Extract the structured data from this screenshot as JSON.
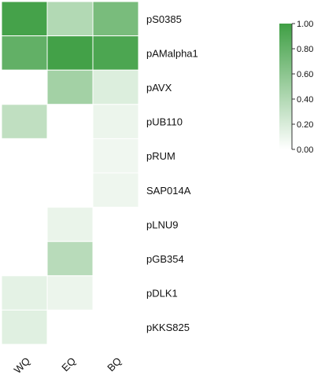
{
  "chart_data": {
    "type": "heatmap",
    "title": "",
    "xlabel": "",
    "ylabel": "",
    "columns": [
      "WQ",
      "EQ",
      "BQ"
    ],
    "rows": [
      "pS0385",
      "pAMalpha1",
      "pAVX",
      "pUB110",
      "pRUM",
      "SAP014A",
      "pLNU9",
      "pGB354",
      "pDLK1",
      "pKKS825"
    ],
    "values": [
      [
        0.97,
        0.4,
        0.7
      ],
      [
        0.82,
        0.98,
        0.93
      ],
      [
        0.0,
        0.48,
        0.18
      ],
      [
        0.33,
        0.0,
        0.1
      ],
      [
        0.0,
        0.0,
        0.08
      ],
      [
        0.0,
        0.0,
        0.09
      ],
      [
        0.0,
        0.11,
        0.0
      ],
      [
        0.0,
        0.37,
        0.0
      ],
      [
        0.14,
        0.1,
        0.0
      ],
      [
        0.16,
        0.0,
        0.0
      ]
    ],
    "colorbar": {
      "range": [
        0,
        1
      ],
      "ticks": [
        0.0,
        0.2,
        0.4,
        0.6,
        0.8,
        1.0
      ],
      "tick_labels": [
        "0.00",
        "0.20",
        "0.40",
        "0.60",
        "0.80",
        "1.00"
      ],
      "color_low": "#ffffff",
      "color_high": "#3f9f44"
    },
    "grid": true,
    "legend": "top-right colorbar"
  }
}
